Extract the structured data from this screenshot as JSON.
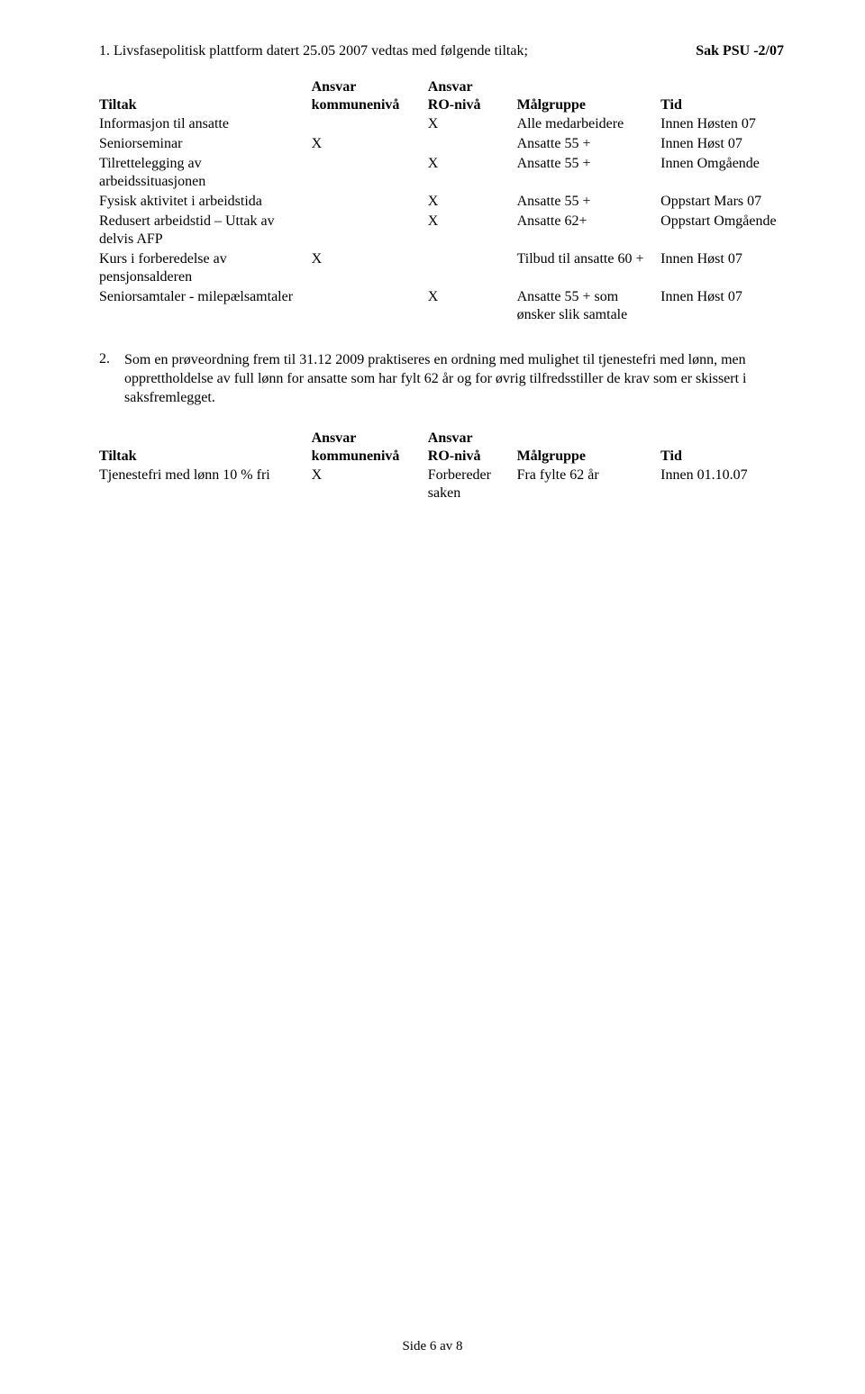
{
  "sak_label": "Sak  PSU -2/07",
  "intro_number": "1.",
  "intro_text": "Livsfasepolitisk plattform datert 25.05 2007 vedtas med følgende tiltak;",
  "table1": {
    "head_line1": {
      "tiltak": "",
      "kom": "Ansvar",
      "ro": "Ansvar",
      "mal": "",
      "tid": ""
    },
    "head_line2": {
      "tiltak": "Tiltak",
      "kom": "kommunenivå",
      "ro": "RO-nivå",
      "mal": "Målgruppe",
      "tid": "Tid"
    },
    "rows": [
      {
        "tiltak": "Informasjon til ansatte",
        "kom": "",
        "ro": "X",
        "mal": "Alle medarbeidere",
        "tid": "Innen Høsten 07"
      },
      {
        "tiltak": "Seniorseminar",
        "kom": "X",
        "ro": "",
        "mal": "Ansatte 55 +",
        "tid": "Innen Høst 07"
      },
      {
        "tiltak": "Tilrettelegging av arbeidssituasjonen",
        "kom": "",
        "ro": "X",
        "mal": "Ansatte 55 +",
        "tid": "Innen Omgående"
      },
      {
        "tiltak": "Fysisk aktivitet i arbeidstida",
        "kom": "",
        "ro": "X",
        "mal": "Ansatte 55 +",
        "tid": "Oppstart Mars 07"
      },
      {
        "tiltak": "Redusert arbeidstid – Uttak av delvis AFP",
        "kom": "",
        "ro": "X",
        "mal": "Ansatte 62+",
        "tid": "Oppstart Omgående"
      },
      {
        "tiltak": "Kurs i forberedelse av pensjonsalderen",
        "kom": "X",
        "ro": "",
        "mal": "Tilbud til ansatte 60 +",
        "tid": "Innen Høst 07"
      },
      {
        "tiltak": "Seniorsamtaler - milepælsamtaler",
        "kom": "",
        "ro": "X",
        "mal": "Ansatte 55 + som ønsker slik samtale",
        "tid": "Innen Høst  07"
      }
    ]
  },
  "para2_number": "2.",
  "para2_text": "Som en prøveordning frem til 31.12 2009 praktiseres en ordning med mulighet til tjenestefri med lønn, men opprettholdelse av full lønn for ansatte som har fylt 62 år og for øvrig tilfredsstiller de krav som er skissert i saksfremlegget.",
  "table2": {
    "head_line1": {
      "tiltak": "",
      "kom": "Ansvar",
      "ro": "Ansvar",
      "mal": "",
      "tid": ""
    },
    "head_line2": {
      "tiltak": "Tiltak",
      "kom": "kommunenivå",
      "ro": "RO-nivå",
      "mal": "Målgruppe",
      "tid": "Tid"
    },
    "rows": [
      {
        "tiltak": "Tjenestefri med lønn 10 % fri",
        "kom": "X",
        "ro": "",
        "mal": "Forbereder saken",
        "tid_mal_extra": "Fra fylte 62 år",
        "tid": "Innen 01.10.07"
      }
    ]
  },
  "footer_text": "Side 6 av 8"
}
